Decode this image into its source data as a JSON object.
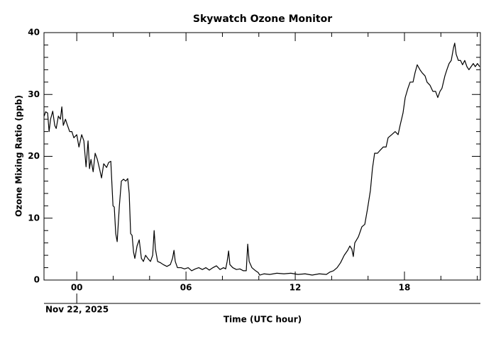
{
  "chart_data": {
    "type": "line",
    "title": "Skywatch Ozone Monitor",
    "xlabel": "Time (UTC hour)",
    "ylabel": "Ozone Mixing Ratio (ppb)",
    "date_label": "Nov 22, 2025",
    "xlim": [
      -1.8,
      22.17
    ],
    "ylim": [
      0,
      40
    ],
    "xticks": [
      {
        "value": 0,
        "label": "00"
      },
      {
        "value": 6,
        "label": "06"
      },
      {
        "value": 12,
        "label": "12"
      },
      {
        "value": 18,
        "label": "18"
      }
    ],
    "xminorticks": [
      2,
      4,
      8,
      10,
      14,
      16,
      20,
      22
    ],
    "yticks": [
      0,
      10,
      20,
      30,
      40
    ],
    "yminorticks": [
      2,
      4,
      6,
      8,
      12,
      14,
      16,
      18,
      22,
      24,
      26,
      28,
      32,
      34,
      36,
      38
    ],
    "series": [
      {
        "name": "Ozone",
        "color": "#000000",
        "x": [
          -1.79,
          -1.71,
          -1.6,
          -1.52,
          -1.44,
          -1.32,
          -1.21,
          -1.13,
          -1.01,
          -0.9,
          -0.82,
          -0.74,
          -0.62,
          -0.51,
          -0.39,
          -0.27,
          -0.16,
          0,
          0.12,
          0.27,
          0.39,
          0.51,
          0.62,
          0.7,
          0.78,
          0.9,
          1.01,
          1.13,
          1.25,
          1.36,
          1.48,
          1.64,
          1.75,
          1.87,
          1.99,
          2.06,
          2.14,
          2.22,
          2.34,
          2.45,
          2.57,
          2.69,
          2.8,
          2.88,
          2.96,
          3.04,
          3.12,
          3.19,
          3.31,
          3.43,
          3.55,
          3.66,
          3.78,
          3.9,
          4.05,
          4.17,
          4.25,
          4.32,
          4.44,
          4.6,
          4.75,
          4.95,
          5.14,
          5.26,
          5.34,
          5.41,
          5.53,
          5.73,
          5.92,
          6.12,
          6.31,
          6.51,
          6.7,
          6.9,
          7.09,
          7.28,
          7.48,
          7.67,
          7.87,
          8.06,
          8.18,
          8.26,
          8.34,
          8.41,
          8.57,
          8.77,
          8.96,
          9.15,
          9.31,
          9.39,
          9.47,
          9.62,
          9.82,
          9.97,
          10.05,
          10.28,
          10.6,
          10.99,
          11.38,
          11.76,
          12.15,
          12.54,
          12.93,
          13.32,
          13.71,
          13.91,
          14.1,
          14.3,
          14.49,
          14.69,
          14.88,
          15.0,
          15.11,
          15.19,
          15.27,
          15.47,
          15.66,
          15.82,
          15.97,
          16.05,
          16.13,
          16.24,
          16.36,
          16.52,
          16.67,
          16.83,
          16.99,
          17.1,
          17.3,
          17.49,
          17.65,
          17.76,
          17.92,
          18.04,
          18.19,
          18.31,
          18.47,
          18.58,
          18.7,
          18.85,
          18.97,
          19.13,
          19.24,
          19.4,
          19.56,
          19.71,
          19.83,
          19.95,
          20.06,
          20.22,
          20.33,
          20.45,
          20.57,
          20.69,
          20.76,
          20.84,
          20.96,
          21.08,
          21.19,
          21.31,
          21.43,
          21.54,
          21.66,
          21.78,
          21.89,
          22.01,
          22.13
        ],
        "values": [
          26.5,
          27.2,
          27,
          24,
          26,
          27.3,
          25,
          24.5,
          26.5,
          26,
          28,
          25,
          26,
          25,
          24,
          24,
          23,
          23.5,
          21.5,
          23.5,
          22.5,
          18.3,
          22.5,
          18,
          19.5,
          17.5,
          20.5,
          19.5,
          18,
          16.5,
          18.8,
          18.2,
          19,
          19.2,
          12,
          11.8,
          7.5,
          6.2,
          12,
          16,
          16.3,
          16,
          16.4,
          14,
          7.5,
          7.2,
          4.5,
          3.5,
          5.5,
          6.5,
          3.5,
          3,
          4,
          3.5,
          3,
          4,
          8,
          5,
          3,
          2.8,
          2.5,
          2.2,
          2.5,
          3.5,
          4.8,
          3,
          2,
          2,
          1.8,
          2,
          1.5,
          1.8,
          2,
          1.7,
          2,
          1.6,
          2,
          2.3,
          1.7,
          2,
          1.8,
          3,
          4.7,
          2.5,
          2,
          1.7,
          1.8,
          1.5,
          1.5,
          5.8,
          3,
          2,
          1.5,
          1.2,
          0.8,
          1,
          0.9,
          1.1,
          1,
          1.1,
          0.9,
          1,
          0.8,
          1,
          0.9,
          1.3,
          1.5,
          2,
          2.8,
          4,
          4.8,
          5.5,
          5,
          3.8,
          6,
          7,
          8.6,
          9,
          11.5,
          13,
          14.5,
          18,
          20.5,
          20.5,
          21,
          21.5,
          21.5,
          23,
          23.5,
          24,
          23.5,
          25,
          27,
          29.5,
          31,
          32,
          32,
          33.5,
          34.8,
          34,
          33.5,
          33,
          32,
          31.5,
          30.5,
          30.5,
          29.5,
          30.5,
          31,
          33,
          34,
          35,
          35.5,
          37.5,
          38.3,
          36.5,
          35.5,
          35.5,
          34.8,
          35.5,
          34.5,
          34,
          34.5,
          35,
          34.5,
          35,
          34.5
        ]
      }
    ]
  }
}
